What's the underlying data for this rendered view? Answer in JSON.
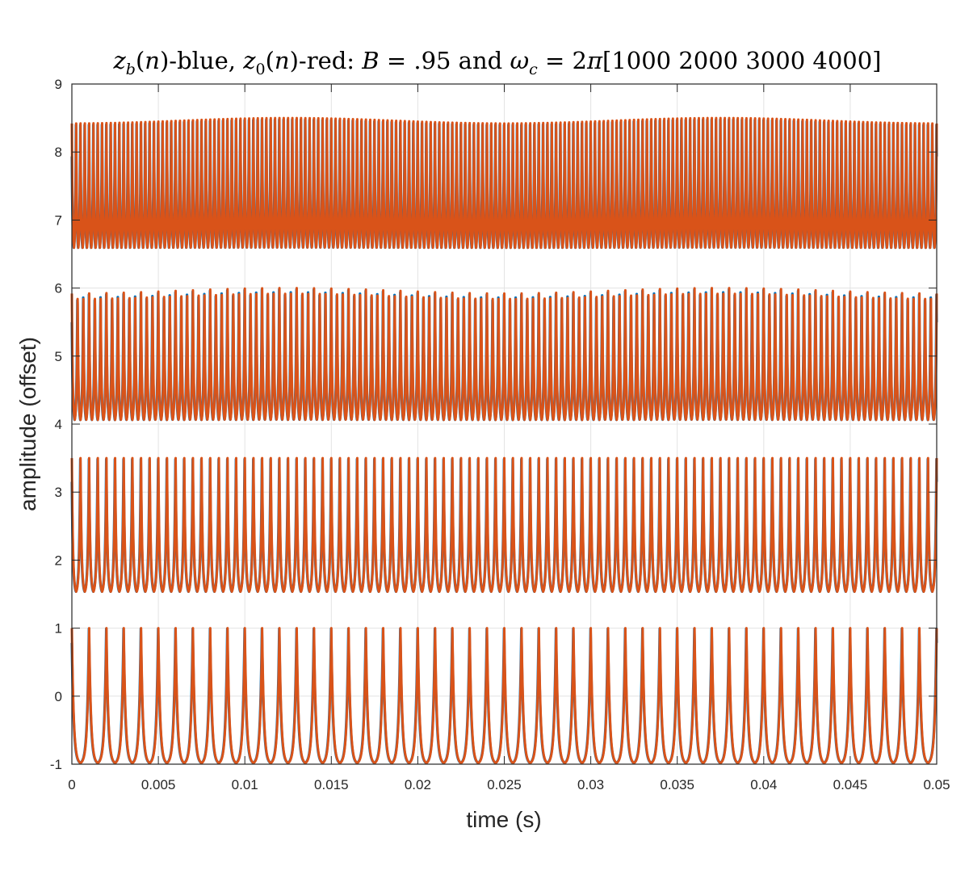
{
  "chart_data": {
    "type": "line",
    "title": {
      "parts": [
        {
          "text": "z",
          "italic": true
        },
        {
          "text": "b",
          "sub": true,
          "italic": true
        },
        {
          "text": "("
        },
        {
          "text": "n",
          "italic": true
        },
        {
          "text": ")-blue, "
        },
        {
          "text": "z",
          "italic": true
        },
        {
          "text": "0",
          "sub": true
        },
        {
          "text": "("
        },
        {
          "text": "n",
          "italic": true
        },
        {
          "text": ")-red:  "
        },
        {
          "text": "B",
          "italic": true
        },
        {
          "text": " = .95 and "
        },
        {
          "text": "ω",
          "italic": true
        },
        {
          "text": "c",
          "sub": true,
          "italic": true
        },
        {
          "text": " = 2"
        },
        {
          "text": "π",
          "italic": true
        },
        {
          "text": "[1000 2000 3000 4000]"
        }
      ]
    },
    "xlabel": "time (s)",
    "ylabel": "amplitude (offset)",
    "xlim": [
      0,
      0.05
    ],
    "ylim": [
      -1,
      9
    ],
    "xticks": [
      0,
      0.005,
      0.01,
      0.015,
      0.02,
      0.025,
      0.03,
      0.035,
      0.04,
      0.045,
      0.05
    ],
    "xtick_labels": [
      "0",
      "0.005",
      "0.01",
      "0.015",
      "0.02",
      "0.025",
      "0.03",
      "0.035",
      "0.04",
      "0.045",
      "0.05"
    ],
    "yticks": [
      -1,
      0,
      1,
      2,
      3,
      4,
      5,
      6,
      7,
      8,
      9
    ],
    "ytick_labels": [
      "-1",
      "0",
      "1",
      "2",
      "3",
      "4",
      "5",
      "6",
      "7",
      "8",
      "9"
    ],
    "grid": true,
    "B": 0.95,
    "center_frequencies_hz": [
      1000,
      2000,
      3000,
      4000
    ],
    "offsets": [
      0,
      2.5,
      5,
      7.5
    ],
    "peak_value": 1,
    "trough_value": -1,
    "series": [
      {
        "color": "#0072BD",
        "kind": "blue"
      },
      {
        "color": "#D95319",
        "kind": "red"
      }
    ]
  }
}
